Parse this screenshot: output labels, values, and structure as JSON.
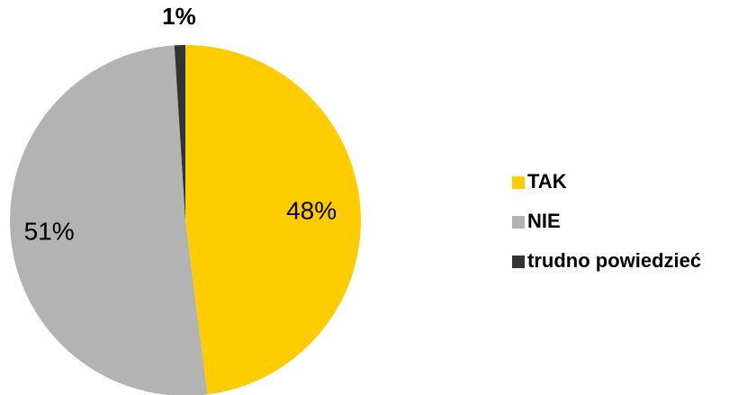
{
  "chart_data": {
    "type": "pie",
    "categories": [
      "TAK",
      "NIE",
      "trudno powiedzieć"
    ],
    "values": [
      48,
      51,
      1
    ],
    "labels": [
      "48%",
      "51%",
      "1%"
    ],
    "colors": [
      "#FFCC00",
      "#B3B3B3",
      "#333333"
    ],
    "start": "12 o'clock",
    "direction": "clockwise",
    "legend": {
      "position": "right",
      "items": [
        "TAK",
        "NIE",
        "trudno powiedzieć"
      ]
    }
  }
}
